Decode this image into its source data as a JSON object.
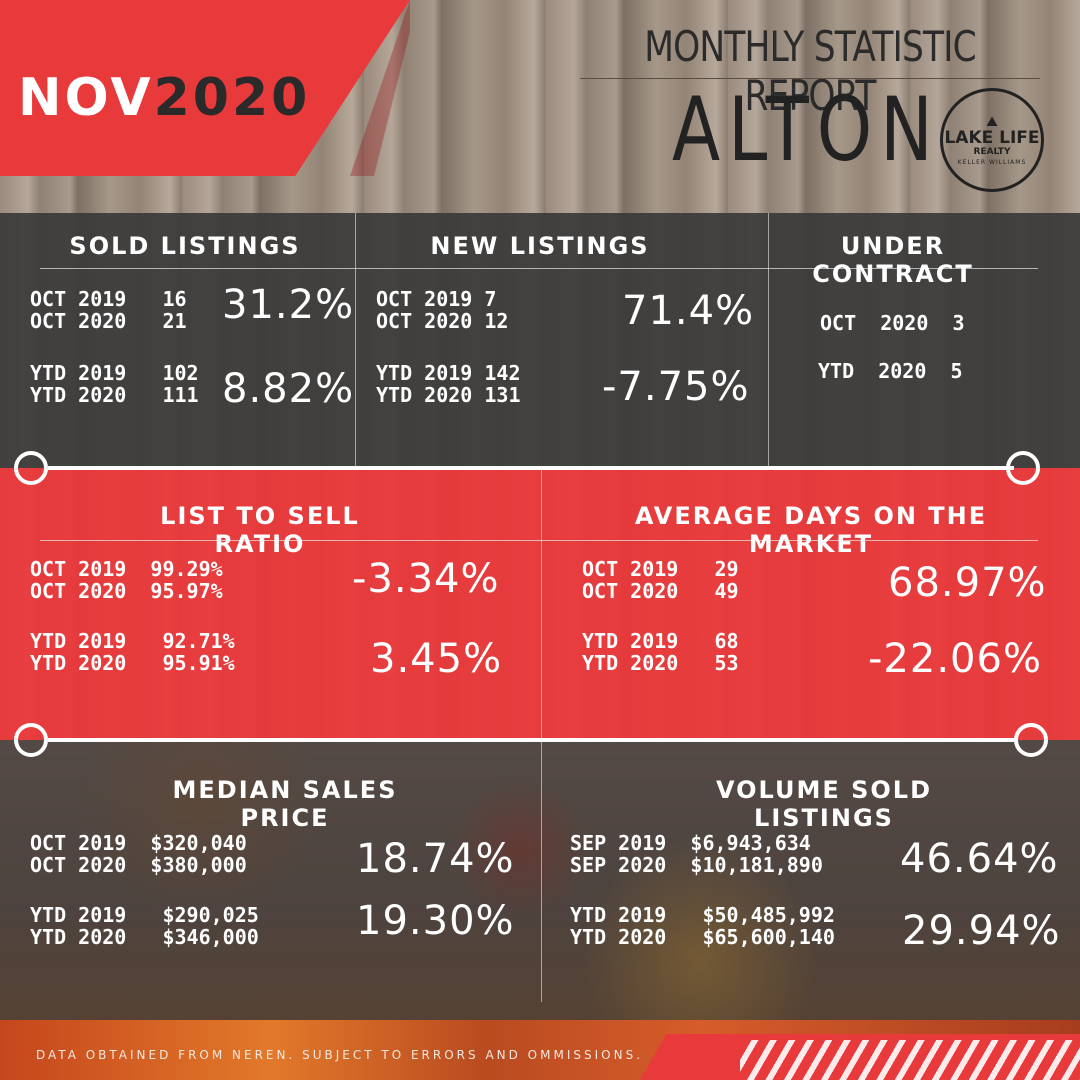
{
  "header": {
    "month": "NOV",
    "year": "2020",
    "report_title": "MONTHLY STATISTIC REPORT",
    "city": "ALTON"
  },
  "logo": {
    "line1": "LAKE LIFE",
    "line2": "REALTY",
    "line3": "KELLER WILLIAMS"
  },
  "sold_listings": {
    "heading": "SOLD LISTINGS",
    "row1": "OCT 2019   16",
    "row2": "OCT 2020   21",
    "pct1": "31.2%",
    "row3": "YTD 2019   102",
    "row4": "YTD 2020   111",
    "pct2": "8.82%"
  },
  "new_listings": {
    "heading": "NEW LISTINGS",
    "row1": "OCT 2019 7",
    "row2": "OCT 2020 12",
    "pct1": "71.4%",
    "row3": "YTD 2019 142",
    "row4": "YTD 2020 131",
    "pct2": "-7.75%"
  },
  "under_contract": {
    "heading": "UNDER CONTRACT",
    "row1": "OCT  2020  3",
    "row2": "YTD  2020  5"
  },
  "list_to_sell": {
    "heading": "LIST TO SELL RATIO",
    "row1": "OCT 2019  99.29%",
    "row2": "OCT 2020  95.97%",
    "pct1": "-3.34%",
    "row3": "YTD 2019   92.71%",
    "row4": "YTD 2020   95.91%",
    "pct2": "3.45%"
  },
  "avg_days": {
    "heading": "AVERAGE DAYS ON THE MARKET",
    "row1": "OCT 2019   29",
    "row2": "OCT 2020   49",
    "pct1": "68.97%",
    "row3": "YTD 2019   68",
    "row4": "YTD 2020   53",
    "pct2": "-22.06%"
  },
  "median_price": {
    "heading": "MEDIAN SALES PRICE",
    "row1": "OCT 2019  $320,040",
    "row2": "OCT 2020  $380,000",
    "pct1": "18.74%",
    "row3": "YTD 2019   $290,025",
    "row4": "YTD 2020   $346,000",
    "pct2": "19.30%"
  },
  "volume_sold": {
    "heading": "VOLUME SOLD LISTINGS",
    "row1": "SEP 2019  $6,943,634",
    "row2": "SEP 2020  $10,181,890",
    "pct1": "46.64%",
    "row3": "YTD 2019   $50,485,992",
    "row4": "YTD 2020   $65,600,140",
    "pct2": "29.94%"
  },
  "footer": {
    "disclaimer": "DATA OBTAINED FROM NEREN. SUBJECT TO ERRORS AND OMMISSIONS."
  },
  "colors": {
    "accent_red": "#e8393b",
    "dark_band": "#3a3a3a",
    "text": "#ffffff"
  }
}
